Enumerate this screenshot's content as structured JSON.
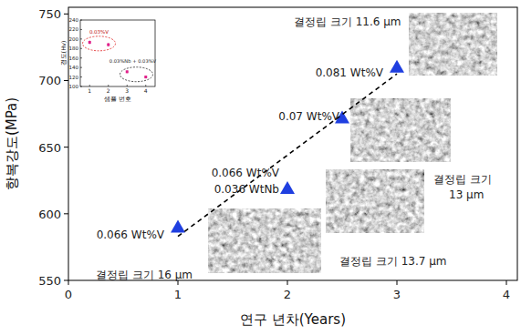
{
  "chart_data": [
    {
      "type": "scatter",
      "x_label": "연구 년차(Years)",
      "y_label": "항복강도(MPa)",
      "xlim": [
        0,
        4.1
      ],
      "xticks": [
        0,
        1,
        2,
        3,
        4
      ],
      "ylim": [
        550,
        755
      ],
      "yticks": [
        550,
        600,
        650,
        700,
        750
      ],
      "grid": false,
      "series": [
        {
          "type": "scatter",
          "marker": "triangle",
          "color": "#1f3fe0",
          "x": [
            1,
            2,
            2.5,
            3
          ],
          "values": [
            590,
            619,
            672,
            710
          ]
        },
        {
          "type": "line",
          "line_style": "dashed",
          "color": "#000000",
          "x": [
            1,
            3
          ],
          "values": [
            583,
            705
          ]
        }
      ],
      "annotations": [
        "0.066 Wt%V",
        "0.066 Wt%V",
        "0.036 WtNb",
        "0.07 Wt%V",
        "0.081 Wt%V",
        "결정립 크기 16 μm",
        "결정립 크기 13.7 μm",
        "결정립 크기 13 μm",
        "결정립 크기 11.6 μm"
      ]
    },
    {
      "type": "scatter",
      "x_label": "샘플 번호",
      "y_label": "경도(Hv)",
      "xlim": [
        0.5,
        4.5
      ],
      "xticks": [
        1,
        2,
        3,
        4
      ],
      "ylim": [
        100,
        240
      ],
      "yticks": [
        100,
        120,
        140,
        160,
        180,
        200,
        220,
        240
      ],
      "marker": "square",
      "color": "#e0208a",
      "x": [
        1,
        2,
        3,
        4
      ],
      "values": [
        193,
        188,
        131,
        120
      ],
      "errors": [
        4,
        4,
        3,
        3
      ],
      "annotations": [
        "0.03%V",
        "0.03%Nb + 0.03%V"
      ]
    }
  ]
}
